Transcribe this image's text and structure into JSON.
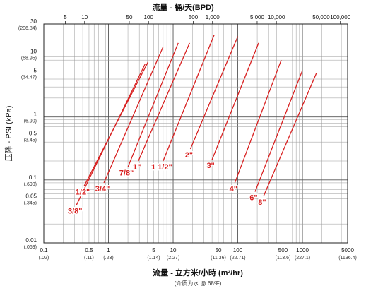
{
  "chart_data": {
    "type": "line",
    "title": "流量 - 桶/天(BPD)",
    "xlabel": "流量 - 立方米/小時 (m³/hr)",
    "xlabel_note": "(介质为水 @ 68ºF)",
    "ylabel": "压降 - PSI (kPa)",
    "x_scale": "log",
    "y_scale": "log",
    "xlim": [
      0.1,
      5000
    ],
    "ylim": [
      0.01,
      30
    ],
    "grid": true,
    "x_ticks": [
      {
        "value": 0.1,
        "label": "0.1",
        "sub": "(.02)"
      },
      {
        "value": 0.5,
        "label": "0.5",
        "sub": "(.11)"
      },
      {
        "value": 1,
        "label": "1",
        "sub": "(.23)"
      },
      {
        "value": 5,
        "label": "5",
        "sub": "(1.14)"
      },
      {
        "value": 10,
        "label": "10",
        "sub": "(2.27)"
      },
      {
        "value": 50,
        "label": "50",
        "sub": "(11.36)"
      },
      {
        "value": 100,
        "label": "100",
        "sub": "(22.71)"
      },
      {
        "value": 500,
        "label": "500",
        "sub": "(113.6)"
      },
      {
        "value": 1000,
        "label": "1000",
        "sub": "(227.1)"
      },
      {
        "value": 5000,
        "label": "5000",
        "sub": "(1136.4)"
      }
    ],
    "y_ticks": [
      {
        "value": 30,
        "label": "30",
        "sub": "(206.84)"
      },
      {
        "value": 10,
        "label": "10",
        "sub": "(68.95)"
      },
      {
        "value": 5,
        "label": "5",
        "sub": "(34.47)"
      },
      {
        "value": 1,
        "label": "1",
        "sub": "(6.90)"
      },
      {
        "value": 0.5,
        "label": "0.5",
        "sub": "(3.45)"
      },
      {
        "value": 0.1,
        "label": "0.1",
        "sub": "(.690)"
      },
      {
        "value": 0.05,
        "label": "0.05",
        "sub": "(.345)"
      },
      {
        "value": 0.01,
        "label": "0.01",
        "sub": "(.069)"
      }
    ],
    "top_ticks": [
      {
        "value": 5,
        "label": "5"
      },
      {
        "value": 10,
        "label": "10"
      },
      {
        "value": 50,
        "label": "50"
      },
      {
        "value": 100,
        "label": "100"
      },
      {
        "value": 500,
        "label": "500"
      },
      {
        "value": 1000,
        "label": "1,000"
      },
      {
        "value": 5000,
        "label": "5,000"
      },
      {
        "value": 10000,
        "label": "10,000"
      },
      {
        "value": 50000,
        "label": "50,000"
      },
      {
        "value": 100000,
        "label": "100,000"
      }
    ],
    "series": [
      {
        "name": "3/8\"",
        "points": [
          [
            0.32,
            0.04
          ],
          [
            3.7,
            7.0
          ]
        ]
      },
      {
        "name": "1/2\"",
        "points": [
          [
            0.42,
            0.08
          ],
          [
            4.1,
            7.5
          ]
        ]
      },
      {
        "name": "3/4\"",
        "points": [
          [
            0.85,
            0.09
          ],
          [
            7.0,
            13.0
          ]
        ]
      },
      {
        "name": "7/8\"",
        "points": [
          [
            2.0,
            0.16
          ],
          [
            12.0,
            15.0
          ]
        ]
      },
      {
        "name": "1\"",
        "points": [
          [
            2.9,
            0.2
          ],
          [
            18.0,
            15.0
          ]
        ]
      },
      {
        "name": "1 1/2\"",
        "points": [
          [
            7.0,
            0.2
          ],
          [
            43.0,
            20.0
          ]
        ]
      },
      {
        "name": "2\"",
        "points": [
          [
            18.5,
            0.31
          ],
          [
            100,
            19.0
          ]
        ]
      },
      {
        "name": "3\"",
        "points": [
          [
            40.0,
            0.21
          ],
          [
            210,
            15.0
          ]
        ]
      },
      {
        "name": "4\"",
        "points": [
          [
            90.0,
            0.09
          ],
          [
            470,
            8.0
          ]
        ]
      },
      {
        "name": "6\"",
        "points": [
          [
            185,
            0.065
          ],
          [
            1000,
            5.5
          ]
        ]
      },
      {
        "name": "8\"",
        "points": [
          [
            250,
            0.055
          ],
          [
            1650,
            5.0
          ]
        ]
      }
    ],
    "line_color": "#d82020"
  }
}
